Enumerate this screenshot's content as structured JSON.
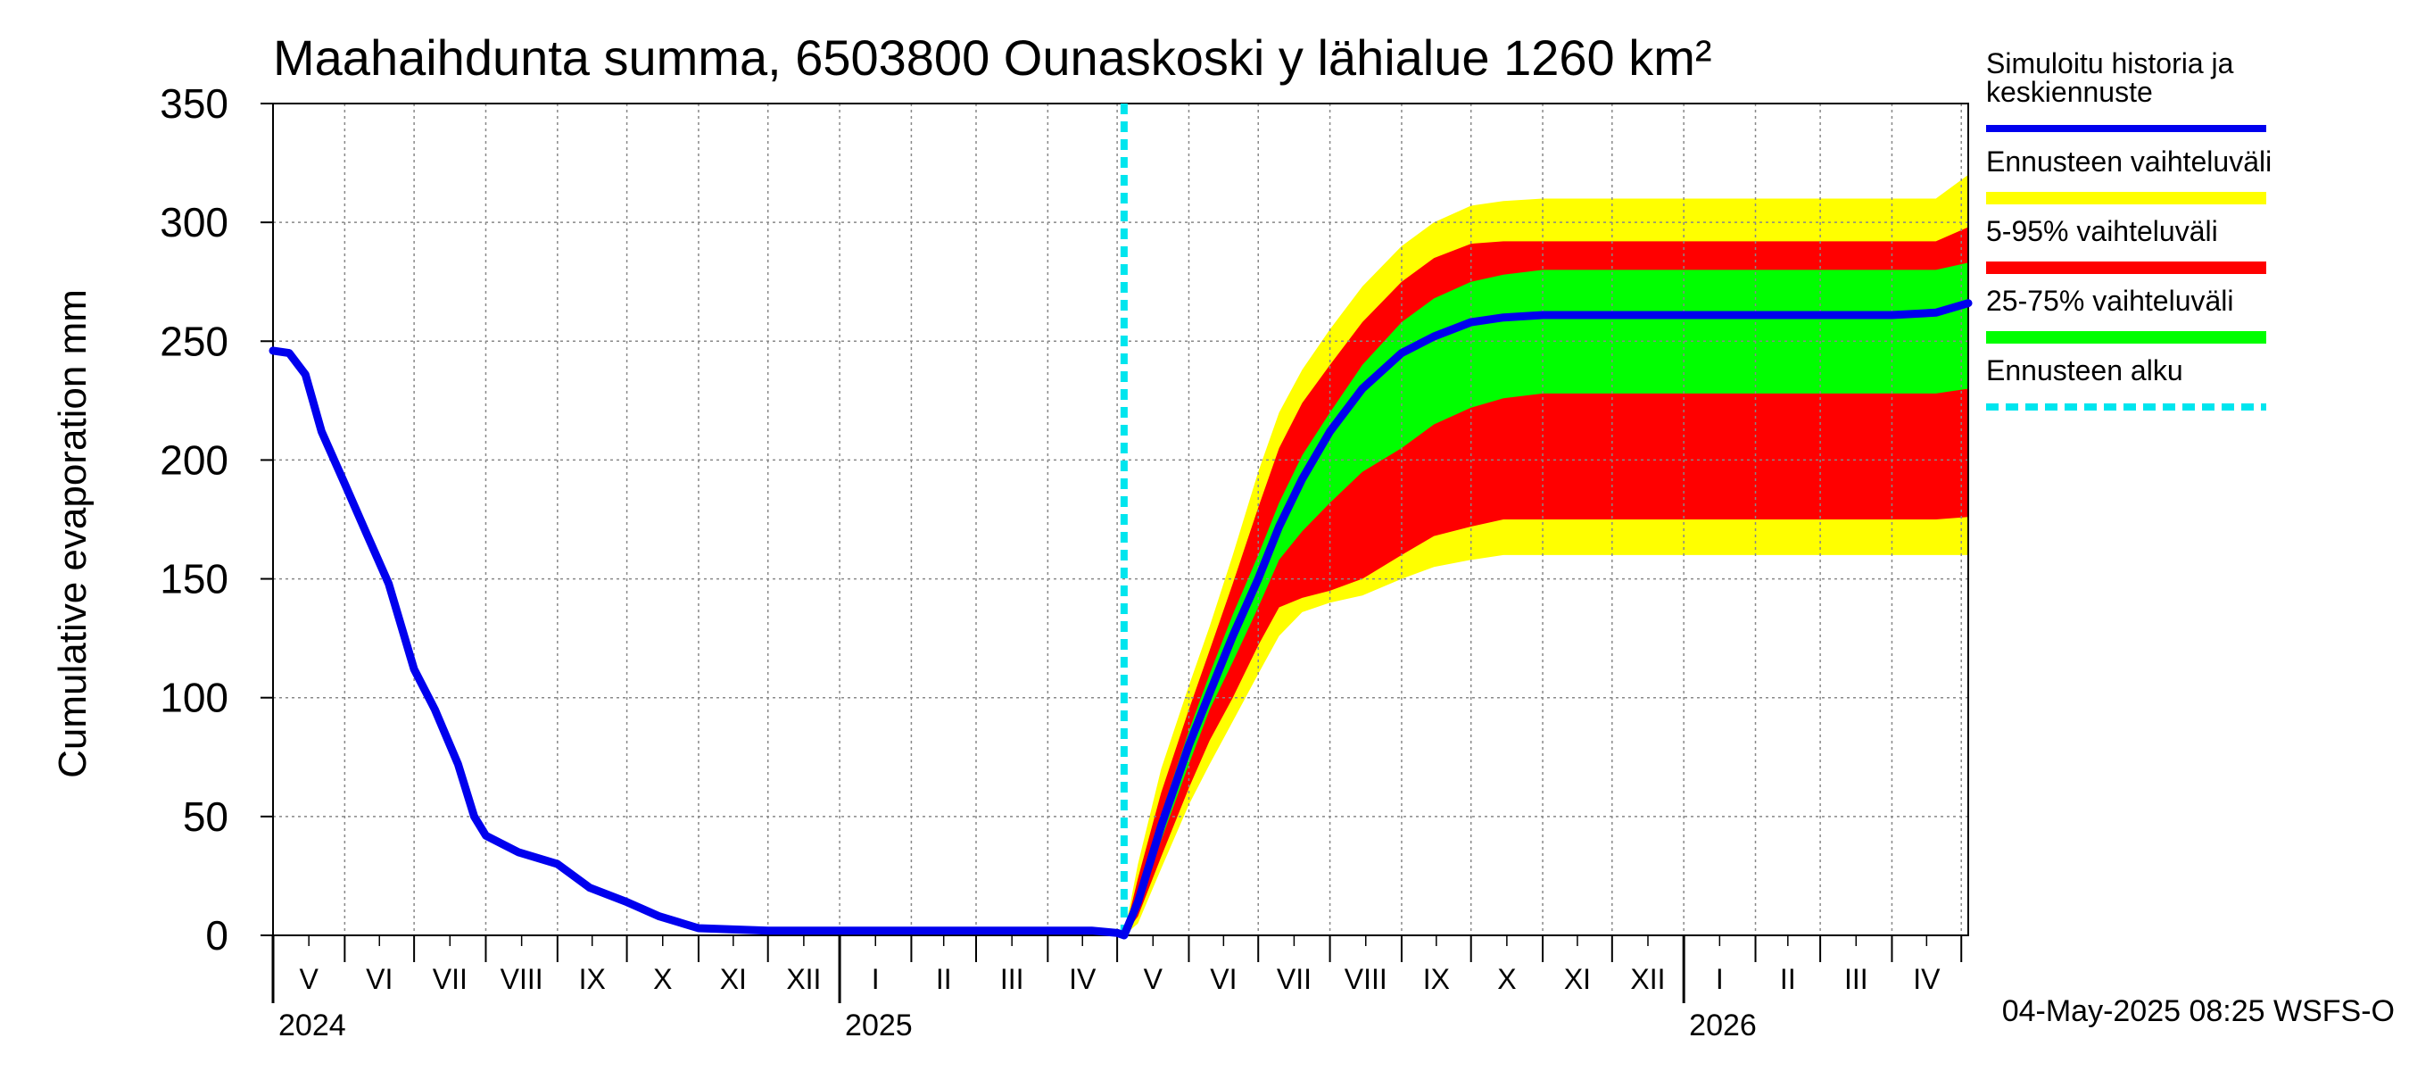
{
  "chart_data": {
    "type": "area",
    "title": "Maahaihdunta summa, 6503800 Ounaskoski y lähialue 1260 km²",
    "ylabel": "Cumulative evaporation   mm",
    "xlabel": "",
    "ylim": [
      0,
      350
    ],
    "yticks": [
      0,
      50,
      100,
      150,
      200,
      250,
      300,
      350
    ],
    "xlim": [
      "2024-05-01",
      "2026-05-04"
    ],
    "month_ticks": [
      {
        "date": "2024-05-01",
        "label": "V"
      },
      {
        "date": "2024-06-01",
        "label": "VI"
      },
      {
        "date": "2024-07-01",
        "label": "VII"
      },
      {
        "date": "2024-08-01",
        "label": "VIII"
      },
      {
        "date": "2024-09-01",
        "label": "IX"
      },
      {
        "date": "2024-10-01",
        "label": "X"
      },
      {
        "date": "2024-11-01",
        "label": "XI"
      },
      {
        "date": "2024-12-01",
        "label": "XII"
      },
      {
        "date": "2025-01-01",
        "label": "I"
      },
      {
        "date": "2025-02-01",
        "label": "II"
      },
      {
        "date": "2025-03-01",
        "label": "III"
      },
      {
        "date": "2025-04-01",
        "label": "IV"
      },
      {
        "date": "2025-05-01",
        "label": "V"
      },
      {
        "date": "2025-06-01",
        "label": "VI"
      },
      {
        "date": "2025-07-01",
        "label": "VII"
      },
      {
        "date": "2025-08-01",
        "label": "VIII"
      },
      {
        "date": "2025-09-01",
        "label": "IX"
      },
      {
        "date": "2025-10-01",
        "label": "X"
      },
      {
        "date": "2025-11-01",
        "label": "XI"
      },
      {
        "date": "2025-12-01",
        "label": "XII"
      },
      {
        "date": "2026-01-01",
        "label": "I"
      },
      {
        "date": "2026-02-01",
        "label": "II"
      },
      {
        "date": "2026-03-01",
        "label": "III"
      },
      {
        "date": "2026-04-01",
        "label": "IV"
      },
      {
        "date": "2026-05-01",
        "label": ""
      }
    ],
    "year_labels": [
      {
        "date": "2024-05-01",
        "label": "2024"
      },
      {
        "date": "2025-01-01",
        "label": "2025"
      },
      {
        "date": "2026-01-01",
        "label": "2026"
      }
    ],
    "forecast_start": "2025-05-04",
    "grid": true,
    "legend_position": "right",
    "timestamp": "04-May-2025 08:25 WSFS-O",
    "legend": [
      {
        "key": "history",
        "label_lines": [
          "Simuloitu historia ja",
          "keskiennuste"
        ],
        "color": "#0000ee",
        "style": "solid"
      },
      {
        "key": "range",
        "label_lines": [
          "Ennusteen vaihteluväli"
        ],
        "color": "#ffff00",
        "style": "solid"
      },
      {
        "key": "p5_95",
        "label_lines": [
          "5-95% vaihteluväli"
        ],
        "color": "#ff0000",
        "style": "solid"
      },
      {
        "key": "p25_75",
        "label_lines": [
          "25-75% vaihteluväli"
        ],
        "color": "#00ff00",
        "style": "solid"
      },
      {
        "key": "start",
        "label_lines": [
          "Ennusteen alku"
        ],
        "color": "#00e5ee",
        "style": "dashed"
      }
    ],
    "bands": [
      {
        "name": "Ennusteen vaihteluväli",
        "color": "#ffff00",
        "x": [
          "2025-05-04",
          "2025-05-10",
          "2025-05-20",
          "2025-06-01",
          "2025-06-10",
          "2025-06-20",
          "2025-07-01",
          "2025-07-10",
          "2025-07-20",
          "2025-08-01",
          "2025-08-15",
          "2025-09-01",
          "2025-09-15",
          "2025-10-01",
          "2025-10-15",
          "2025-11-01",
          "2025-12-01",
          "2026-01-01",
          "2026-03-01",
          "2026-04-01",
          "2026-04-20",
          "2026-05-04"
        ],
        "low": [
          0,
          5,
          28,
          55,
          72,
          90,
          110,
          126,
          136,
          140,
          143,
          150,
          155,
          158,
          160,
          160,
          160,
          160,
          160,
          160,
          160,
          160
        ],
        "high": [
          0,
          30,
          70,
          105,
          130,
          160,
          195,
          220,
          238,
          255,
          273,
          290,
          300,
          307,
          309,
          310,
          310,
          310,
          310,
          310,
          310,
          320
        ]
      },
      {
        "name": "5-95% vaihteluväli",
        "color": "#ff0000",
        "x": [
          "2025-05-04",
          "2025-05-10",
          "2025-05-20",
          "2025-06-01",
          "2025-06-10",
          "2025-06-20",
          "2025-07-01",
          "2025-07-10",
          "2025-07-20",
          "2025-08-01",
          "2025-08-15",
          "2025-09-01",
          "2025-09-15",
          "2025-10-01",
          "2025-10-15",
          "2025-11-01",
          "2025-12-01",
          "2026-01-01",
          "2026-03-01",
          "2026-04-01",
          "2026-04-20",
          "2026-05-04"
        ],
        "low": [
          0,
          8,
          33,
          62,
          82,
          100,
          122,
          138,
          142,
          145,
          150,
          160,
          168,
          172,
          175,
          175,
          175,
          175,
          175,
          175,
          175,
          176
        ],
        "high": [
          0,
          24,
          60,
          95,
          120,
          148,
          180,
          205,
          224,
          240,
          258,
          275,
          285,
          291,
          292,
          292,
          292,
          292,
          292,
          292,
          292,
          298
        ]
      },
      {
        "name": "25-75% vaihteluväli",
        "color": "#00ff00",
        "x": [
          "2025-05-04",
          "2025-05-10",
          "2025-05-20",
          "2025-06-01",
          "2025-06-10",
          "2025-06-20",
          "2025-07-01",
          "2025-07-10",
          "2025-07-20",
          "2025-08-01",
          "2025-08-15",
          "2025-09-01",
          "2025-09-15",
          "2025-10-01",
          "2025-10-15",
          "2025-11-01",
          "2025-12-01",
          "2026-01-01",
          "2026-03-01",
          "2026-04-01",
          "2026-04-20",
          "2026-05-04"
        ],
        "low": [
          0,
          11,
          40,
          72,
          95,
          115,
          138,
          158,
          170,
          182,
          195,
          205,
          215,
          222,
          226,
          228,
          228,
          228,
          228,
          228,
          228,
          230
        ],
        "high": [
          0,
          18,
          51,
          86,
          110,
          135,
          160,
          182,
          202,
          220,
          240,
          258,
          268,
          275,
          278,
          280,
          280,
          280,
          280,
          280,
          280,
          283
        ]
      }
    ],
    "series": [
      {
        "name": "Simuloitu historia ja keskiennuste",
        "color": "#0000ee",
        "x": [
          "2024-05-01",
          "2024-05-08",
          "2024-05-15",
          "2024-05-22",
          "2024-06-01",
          "2024-06-10",
          "2024-06-20",
          "2024-07-01",
          "2024-07-10",
          "2024-07-20",
          "2024-07-27",
          "2024-08-01",
          "2024-08-15",
          "2024-09-01",
          "2024-09-15",
          "2024-10-01",
          "2024-10-15",
          "2024-11-01",
          "2024-12-01",
          "2025-01-01",
          "2025-02-01",
          "2025-03-01",
          "2025-04-01",
          "2025-04-20",
          "2025-05-01",
          "2025-05-04",
          "2025-05-10",
          "2025-05-20",
          "2025-06-01",
          "2025-06-10",
          "2025-06-20",
          "2025-07-01",
          "2025-07-10",
          "2025-07-20",
          "2025-08-01",
          "2025-08-15",
          "2025-09-01",
          "2025-09-15",
          "2025-10-01",
          "2025-10-15",
          "2025-11-01",
          "2025-12-01",
          "2026-01-01",
          "2026-03-01",
          "2026-04-01",
          "2026-04-20",
          "2026-05-04"
        ],
        "y": [
          246,
          245,
          236,
          212,
          190,
          170,
          148,
          112,
          95,
          72,
          50,
          42,
          35,
          30,
          20,
          14,
          8,
          3,
          2,
          2,
          2,
          2,
          2,
          2,
          1,
          0,
          14,
          46,
          80,
          102,
          126,
          150,
          172,
          192,
          212,
          230,
          245,
          252,
          258,
          260,
          261,
          261,
          261,
          261,
          261,
          262,
          266
        ]
      }
    ]
  }
}
